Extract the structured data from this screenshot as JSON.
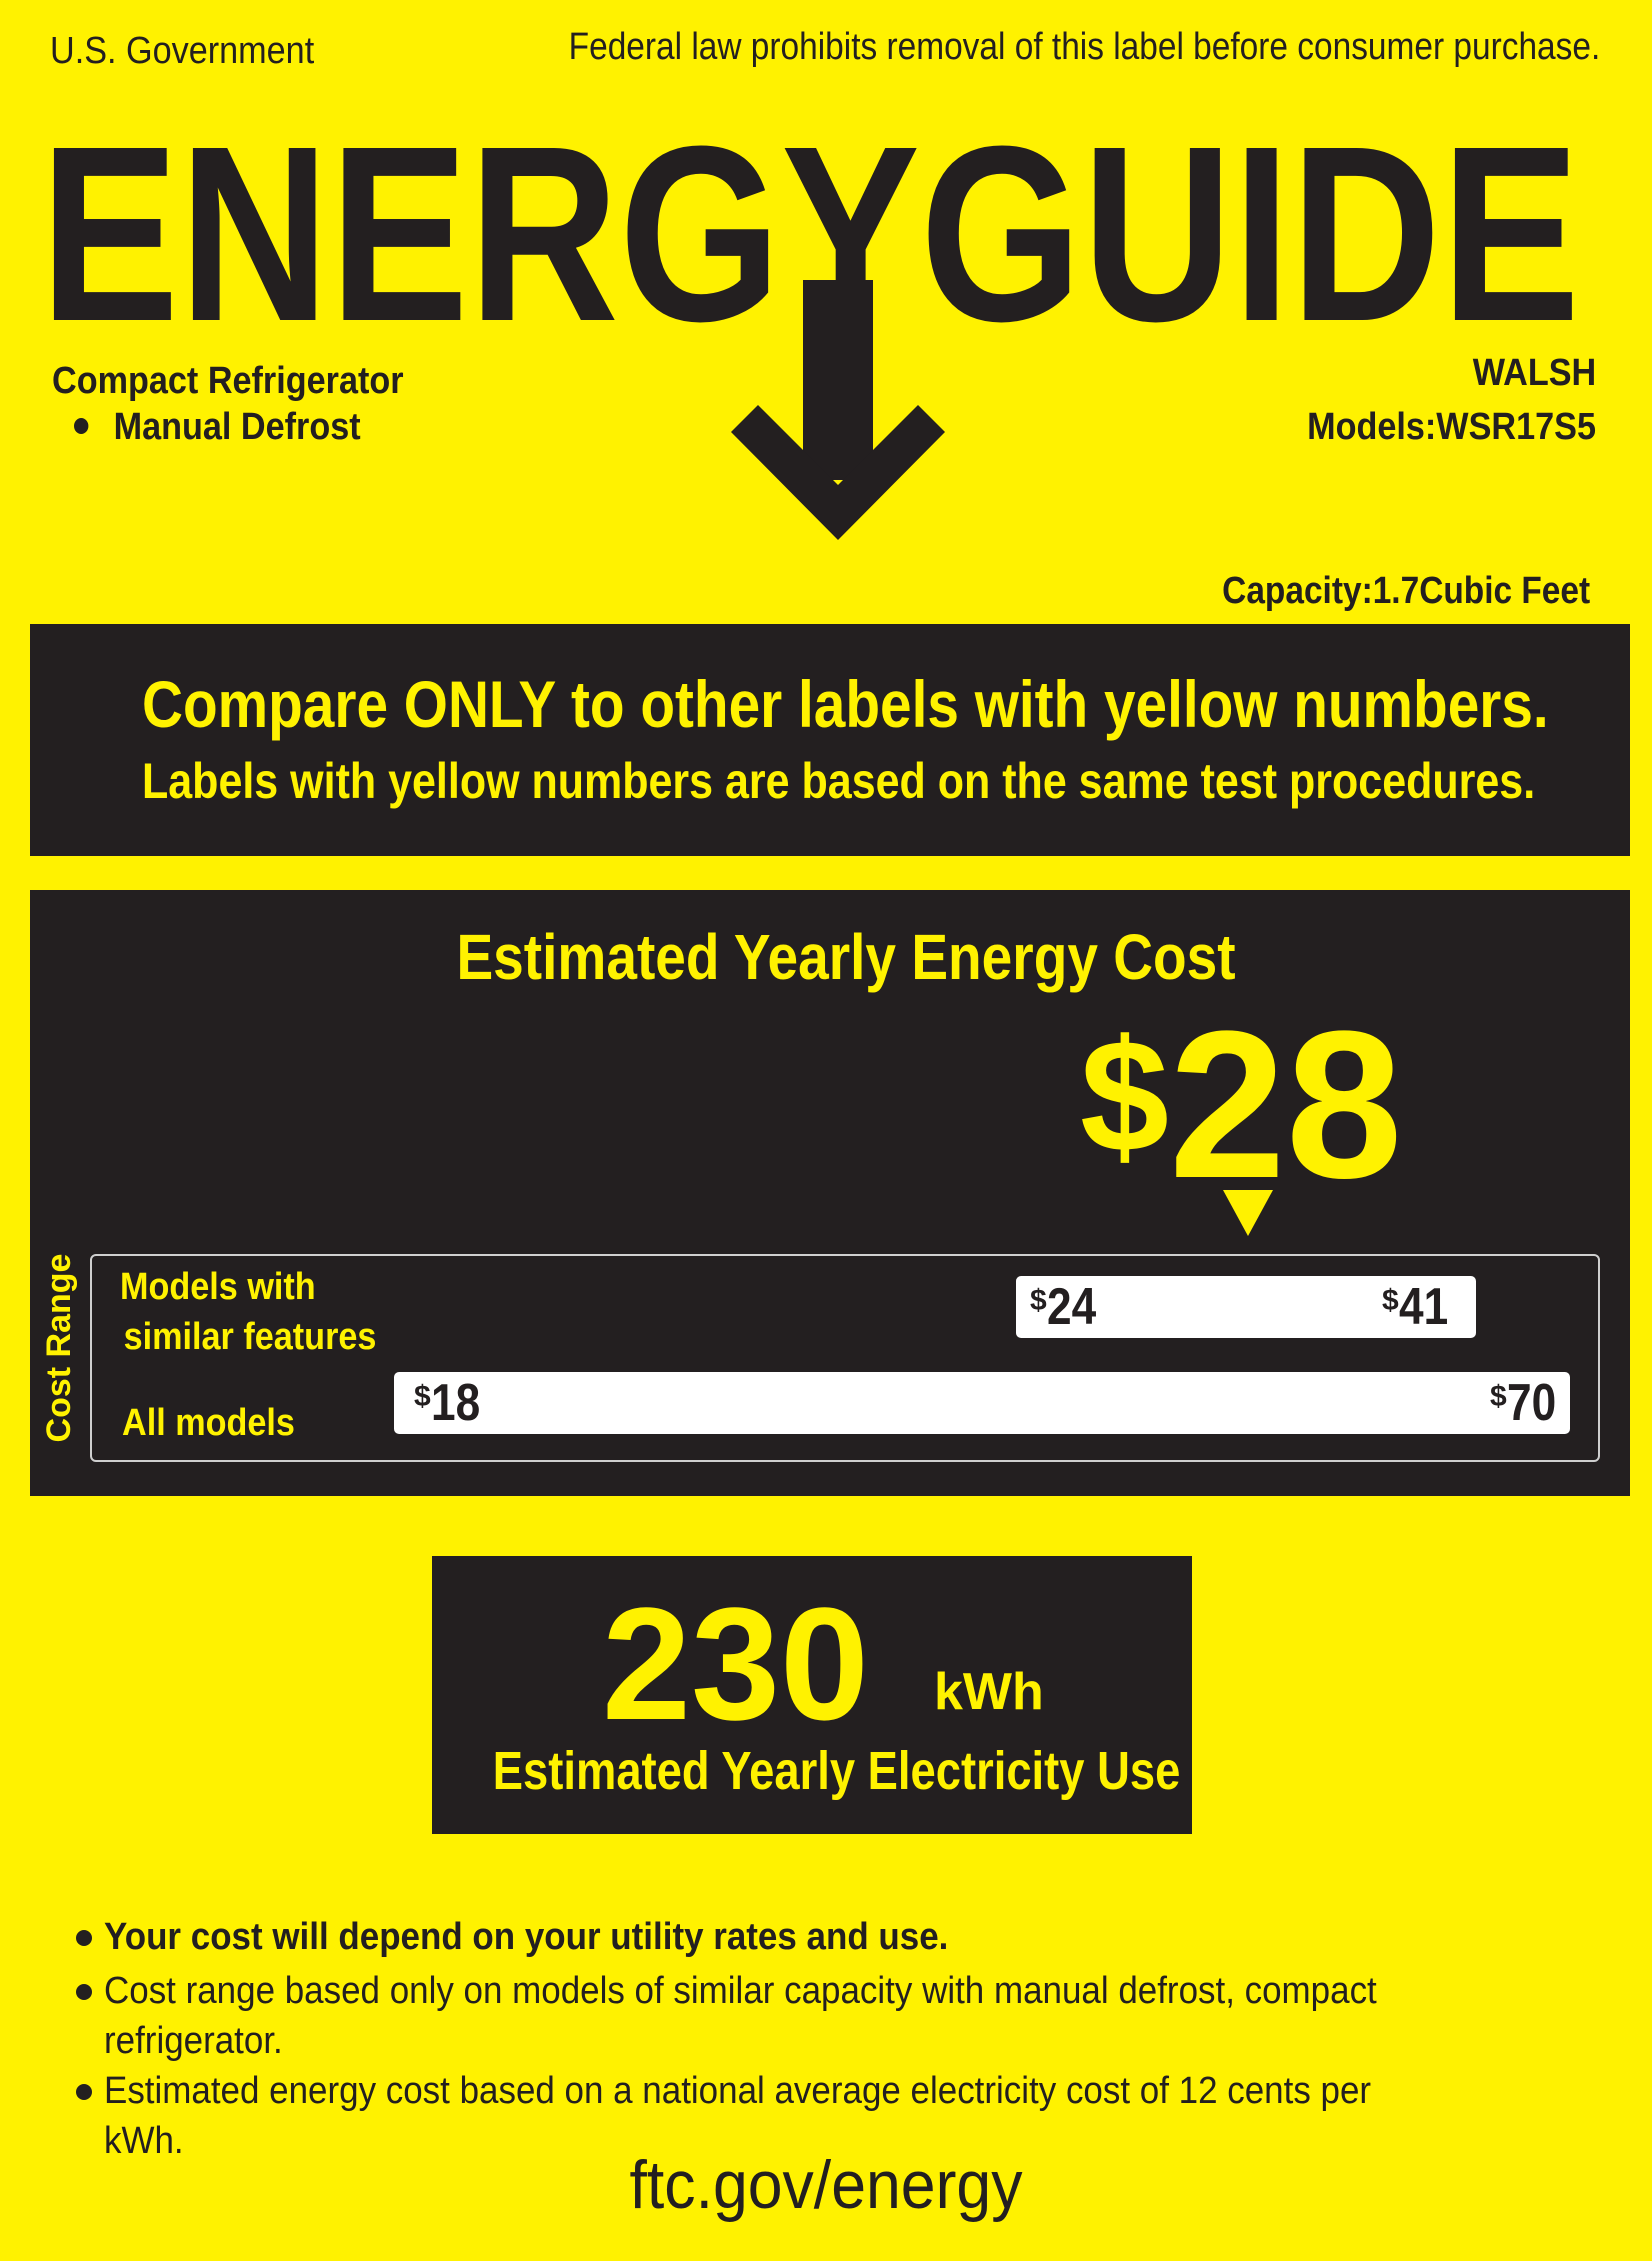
{
  "header": {
    "issuer": "U.S. Government",
    "legal_notice": "Federal law prohibits removal of this label before consumer purchase.",
    "logo_text": "ENERGYGUIDE"
  },
  "product": {
    "category": "Compact Refrigerator",
    "feature": "Manual Defrost",
    "brand": "WALSH",
    "model": "Models:WSR17S5",
    "capacity": "Capacity:1.7Cubic Feet"
  },
  "compare": {
    "line1": "Compare ONLY to other labels with yellow numbers.",
    "line2": "Labels with yellow numbers are based on the same test procedures."
  },
  "cost": {
    "heading": "Estimated Yearly Energy Cost",
    "currency": "$",
    "value": "28",
    "range_axis_label": "Cost Range",
    "similar_label_line1": "Models with",
    "similar_label_line2": "similar features",
    "all_label": "All models",
    "similar_min": "24",
    "similar_max": "41",
    "all_min": "18",
    "all_max": "70"
  },
  "electricity": {
    "value": "230",
    "unit": "kWh",
    "label": "Estimated Yearly Electricity Use"
  },
  "notes": [
    "Your cost will depend on your utility rates and use.",
    "Cost range based only on models of similar capacity with manual defrost, compact refrigerator.",
    "Estimated energy cost based on a national average electricity cost of 12 cents per kWh."
  ],
  "footer": {
    "url": "ftc.gov/energy"
  },
  "colors": {
    "label_yellow": "#fff200",
    "label_dark": "#231f20",
    "bar_white": "#ffffff"
  }
}
